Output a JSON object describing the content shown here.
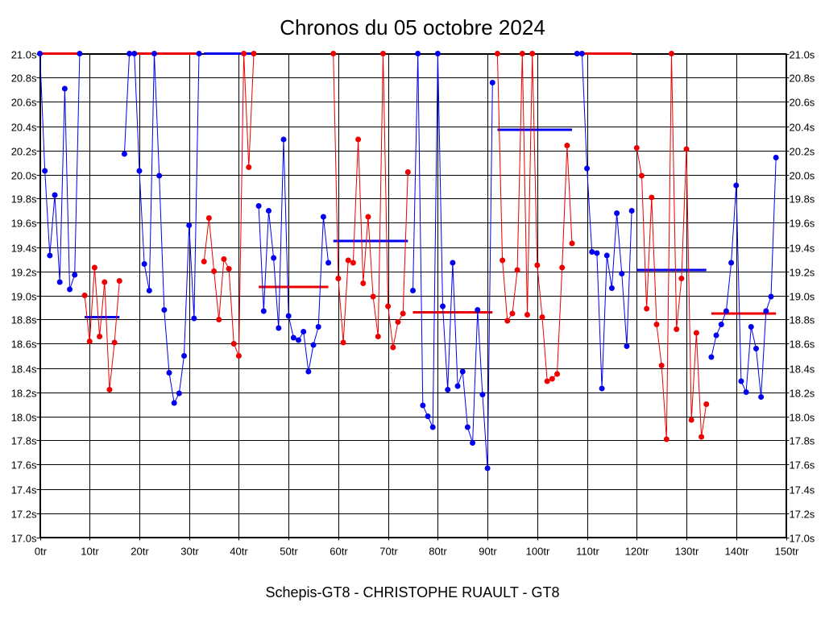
{
  "chart_data": {
    "type": "line",
    "title": "Chronos du 05 octobre 2024",
    "footer": "Schepis-GT8 - CHRISTOPHE RUAULT - GT8",
    "xlim": [
      0,
      150
    ],
    "ylim": [
      17.0,
      21.0
    ],
    "x_ticks": [
      0,
      10,
      20,
      30,
      40,
      50,
      60,
      70,
      80,
      90,
      100,
      110,
      120,
      130,
      140,
      150
    ],
    "x_tick_labels": [
      "0tr",
      "10tr",
      "20tr",
      "30tr",
      "40tr",
      "50tr",
      "60tr",
      "70tr",
      "80tr",
      "90tr",
      "100tr",
      "110tr",
      "120tr",
      "130tr",
      "140tr",
      "150tr"
    ],
    "y_ticks": [
      17.0,
      17.2,
      17.4,
      17.6,
      17.8,
      18.0,
      18.2,
      18.4,
      18.6,
      18.8,
      19.0,
      19.2,
      19.4,
      19.6,
      19.8,
      20.0,
      20.2,
      20.4,
      20.6,
      20.8,
      21.0
    ],
    "y_tick_labels": [
      "17.0s",
      "17.2s",
      "17.4s",
      "17.6s",
      "17.8s",
      "18.0s",
      "18.2s",
      "18.4s",
      "18.6s",
      "18.8s",
      "19.0s",
      "19.2s",
      "19.4s",
      "19.6s",
      "19.8s",
      "20.0s",
      "20.2s",
      "20.4s",
      "20.6s",
      "20.8s",
      "21.0s"
    ],
    "grid": true,
    "labels_both_sides": true,
    "colors": {
      "blue": "#0000ee",
      "red": "#ee0000"
    },
    "series": [
      {
        "color": "blue",
        "x": [
          0,
          1,
          2,
          3,
          4,
          5,
          6,
          7,
          8
        ],
        "y": [
          21.0,
          20.03,
          19.33,
          19.83,
          19.11,
          20.71,
          19.05,
          19.17,
          21.0
        ]
      },
      {
        "color": "red",
        "x": [
          9,
          10,
          11,
          12,
          13,
          14,
          15,
          16
        ],
        "y": [
          19.0,
          18.62,
          19.23,
          18.66,
          19.11,
          18.22,
          18.61,
          19.12
        ]
      },
      {
        "color": "blue",
        "x": [
          17,
          18,
          19,
          20,
          21,
          22,
          23,
          24,
          25,
          26,
          27,
          28,
          29,
          30,
          31,
          32
        ],
        "y": [
          20.17,
          21.0,
          21.0,
          20.03,
          19.26,
          19.04,
          21.0,
          19.99,
          18.88,
          18.36,
          18.11,
          18.19,
          18.5,
          19.58,
          18.81,
          21.0
        ]
      },
      {
        "color": "red",
        "x": [
          33,
          34,
          35,
          36,
          37,
          38,
          39,
          40,
          41,
          42,
          43
        ],
        "y": [
          19.28,
          19.64,
          19.2,
          18.8,
          19.3,
          19.22,
          18.6,
          18.5,
          21.0,
          20.06,
          21.0
        ]
      },
      {
        "color": "blue",
        "x": [
          44,
          45,
          46,
          47,
          48,
          49,
          50,
          51,
          52,
          53,
          54,
          55,
          56,
          57,
          58
        ],
        "y": [
          19.74,
          18.87,
          19.7,
          19.31,
          18.73,
          20.29,
          18.83,
          18.65,
          18.63,
          18.7,
          18.37,
          18.59,
          18.74,
          19.65,
          19.27
        ]
      },
      {
        "color": "red",
        "x": [
          59,
          60,
          61,
          62,
          63,
          64,
          65,
          66,
          67,
          68,
          69,
          70,
          71,
          72,
          73,
          74
        ],
        "y": [
          21.0,
          19.14,
          18.61,
          19.29,
          19.27,
          20.29,
          19.1,
          19.65,
          18.99,
          18.66,
          21.0,
          18.91,
          18.57,
          18.78,
          18.85,
          20.02
        ]
      },
      {
        "color": "blue",
        "x": [
          75,
          76,
          77,
          78,
          79,
          80,
          81,
          82,
          83,
          84,
          85,
          86,
          87,
          88,
          89,
          90,
          91
        ],
        "y": [
          19.04,
          21.0,
          18.09,
          18.0,
          17.91,
          21.0,
          18.91,
          18.22,
          19.27,
          18.25,
          18.37,
          17.91,
          17.78,
          18.88,
          18.18,
          17.57,
          20.76
        ]
      },
      {
        "color": "red",
        "x": [
          92,
          93,
          94,
          95,
          96,
          97,
          98,
          99,
          100,
          101,
          102,
          103,
          104,
          105,
          106,
          107
        ],
        "y": [
          21.0,
          19.29,
          18.79,
          18.85,
          19.21,
          21.0,
          18.84,
          21.0,
          19.25,
          18.82,
          18.29,
          18.31,
          18.35,
          19.23,
          20.24,
          19.43
        ]
      },
      {
        "color": "blue",
        "x": [
          108,
          109,
          110,
          111,
          112,
          113,
          114,
          115,
          116,
          117,
          118,
          119
        ],
        "y": [
          21.0,
          21.0,
          20.05,
          19.36,
          19.35,
          18.23,
          19.33,
          19.06,
          19.68,
          19.18,
          18.58,
          19.7
        ]
      },
      {
        "color": "red",
        "x": [
          120,
          121,
          122,
          123,
          124,
          125,
          126,
          127,
          128,
          129,
          130,
          131,
          132,
          133,
          134
        ],
        "y": [
          20.22,
          19.99,
          18.89,
          19.81,
          18.76,
          18.42,
          17.81,
          21.0,
          18.72,
          19.14,
          20.21,
          17.97,
          18.69,
          17.83,
          18.1
        ]
      },
      {
        "color": "blue",
        "x": [
          135,
          136,
          137,
          138,
          139,
          140,
          141,
          142,
          143,
          144,
          145,
          146,
          147,
          148
        ],
        "y": [
          18.49,
          18.67,
          18.76,
          18.87,
          19.27,
          19.91,
          18.29,
          18.2,
          18.74,
          18.56,
          18.16,
          18.87,
          18.99,
          20.14
        ]
      }
    ],
    "averages": [
      {
        "color": "red",
        "x_start": 0,
        "x_end": 8,
        "y": 21.0
      },
      {
        "color": "blue",
        "x_start": 9,
        "x_end": 16,
        "y": 18.82
      },
      {
        "color": "red",
        "x_start": 19,
        "x_end": 32,
        "y": 21.0
      },
      {
        "color": "blue",
        "x_start": 33,
        "x_end": 43,
        "y": 21.0
      },
      {
        "color": "red",
        "x_start": 44,
        "x_end": 58,
        "y": 19.07
      },
      {
        "color": "blue",
        "x_start": 59,
        "x_end": 74,
        "y": 19.45
      },
      {
        "color": "red",
        "x_start": 75,
        "x_end": 91,
        "y": 18.86
      },
      {
        "color": "blue",
        "x_start": 92,
        "x_end": 107,
        "y": 20.37
      },
      {
        "color": "red",
        "x_start": 108,
        "x_end": 119,
        "y": 21.0
      },
      {
        "color": "blue",
        "x_start": 120,
        "x_end": 134,
        "y": 19.21
      },
      {
        "color": "red",
        "x_start": 135,
        "x_end": 148,
        "y": 18.85
      }
    ]
  }
}
